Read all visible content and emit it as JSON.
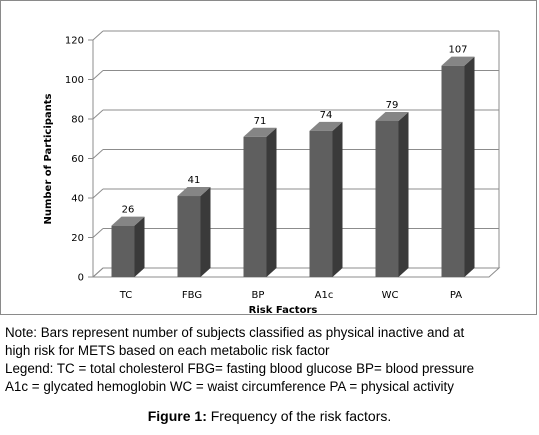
{
  "chart_data": {
    "type": "bar",
    "categories": [
      "TC",
      "FBG",
      "BP",
      "A1c",
      "WC",
      "PA"
    ],
    "values": [
      26,
      41,
      71,
      74,
      79,
      107
    ],
    "xlabel": "Risk Factors",
    "ylabel": "Number of Participants",
    "ylim": [
      0,
      120
    ],
    "yticks": [
      0,
      20,
      40,
      60,
      80,
      100,
      120
    ],
    "grid": true,
    "bar_color": "#5f5f5f",
    "data_labels": true
  },
  "caption": {
    "note_line1": "Note: Bars represent number of subjects classified as physical inactive and at",
    "note_line2": "high risk for METS based on each metabolic risk factor",
    "legend_line1": "Legend: TC = total cholesterol FBG= fasting blood glucose BP= blood pressure",
    "legend_line2": "A1c = glycated hemoglobin WC = waist circumference PA = physical activity"
  },
  "figure": {
    "label": "Figure 1:",
    "text": " Frequency of the risk factors."
  }
}
